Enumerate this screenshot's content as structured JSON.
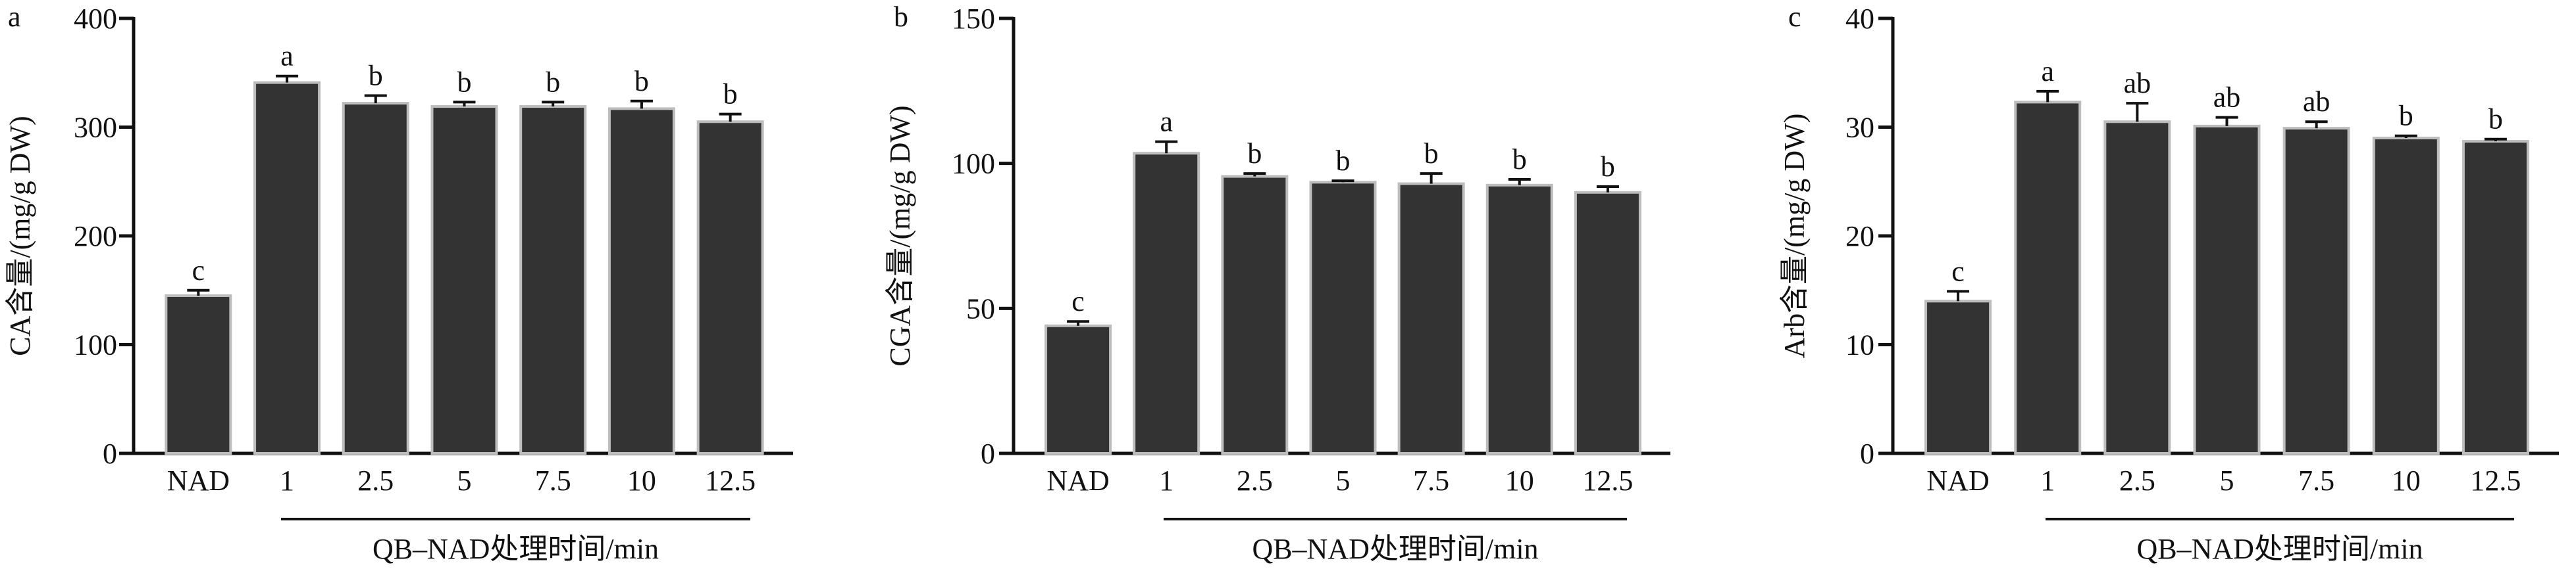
{
  "figure": {
    "bar_color": "#333333",
    "bar_edge_color": "#bdbdbd",
    "axis_color": "#111111"
  },
  "chart_data": [
    {
      "type": "bar",
      "panel_label": "a",
      "ylabel": "CA含量/(mg/g DW)",
      "xlabel": "QB–NAD处理时间/min",
      "categories": [
        "NAD",
        "1",
        "2.5",
        "5",
        "7.5",
        "10",
        "12.5"
      ],
      "values": [
        145,
        341,
        322,
        319,
        319,
        317,
        305
      ],
      "errors": [
        5,
        6,
        7,
        4,
        4,
        7,
        7
      ],
      "letters": [
        "c",
        "a",
        "b",
        "b",
        "b",
        "b",
        "b"
      ],
      "ylim": [
        0,
        400
      ],
      "yticks": [
        0,
        100,
        200,
        300,
        400
      ],
      "grid": false
    },
    {
      "type": "bar",
      "panel_label": "b",
      "ylabel": "CGA含量/(mg/g DW)",
      "xlabel": "QB–NAD处理时间/min",
      "categories": [
        "NAD",
        "1",
        "2.5",
        "5",
        "7.5",
        "10",
        "12.5"
      ],
      "values": [
        44,
        103.5,
        95.5,
        93.5,
        93,
        92.5,
        90
      ],
      "errors": [
        1.5,
        4,
        1,
        0.5,
        3.5,
        2,
        2
      ],
      "letters": [
        "c",
        "a",
        "b",
        "b",
        "b",
        "b",
        "b"
      ],
      "ylim": [
        0,
        150
      ],
      "yticks": [
        0,
        50,
        100,
        150
      ],
      "grid": false
    },
    {
      "type": "bar",
      "panel_label": "c",
      "ylabel": "Arb含量/(mg/g DW)",
      "xlabel": "QB–NAD处理时间/min",
      "categories": [
        "NAD",
        "1",
        "2.5",
        "5",
        "7.5",
        "10",
        "12.5"
      ],
      "values": [
        14,
        32.3,
        30.5,
        30.1,
        29.9,
        29,
        28.7
      ],
      "errors": [
        0.9,
        1,
        1.7,
        0.8,
        0.6,
        0.2,
        0.2
      ],
      "letters": [
        "c",
        "a",
        "ab",
        "ab",
        "ab",
        "b",
        "b"
      ],
      "ylim": [
        0,
        40
      ],
      "yticks": [
        0,
        10,
        20,
        30,
        40
      ],
      "grid": false
    }
  ]
}
